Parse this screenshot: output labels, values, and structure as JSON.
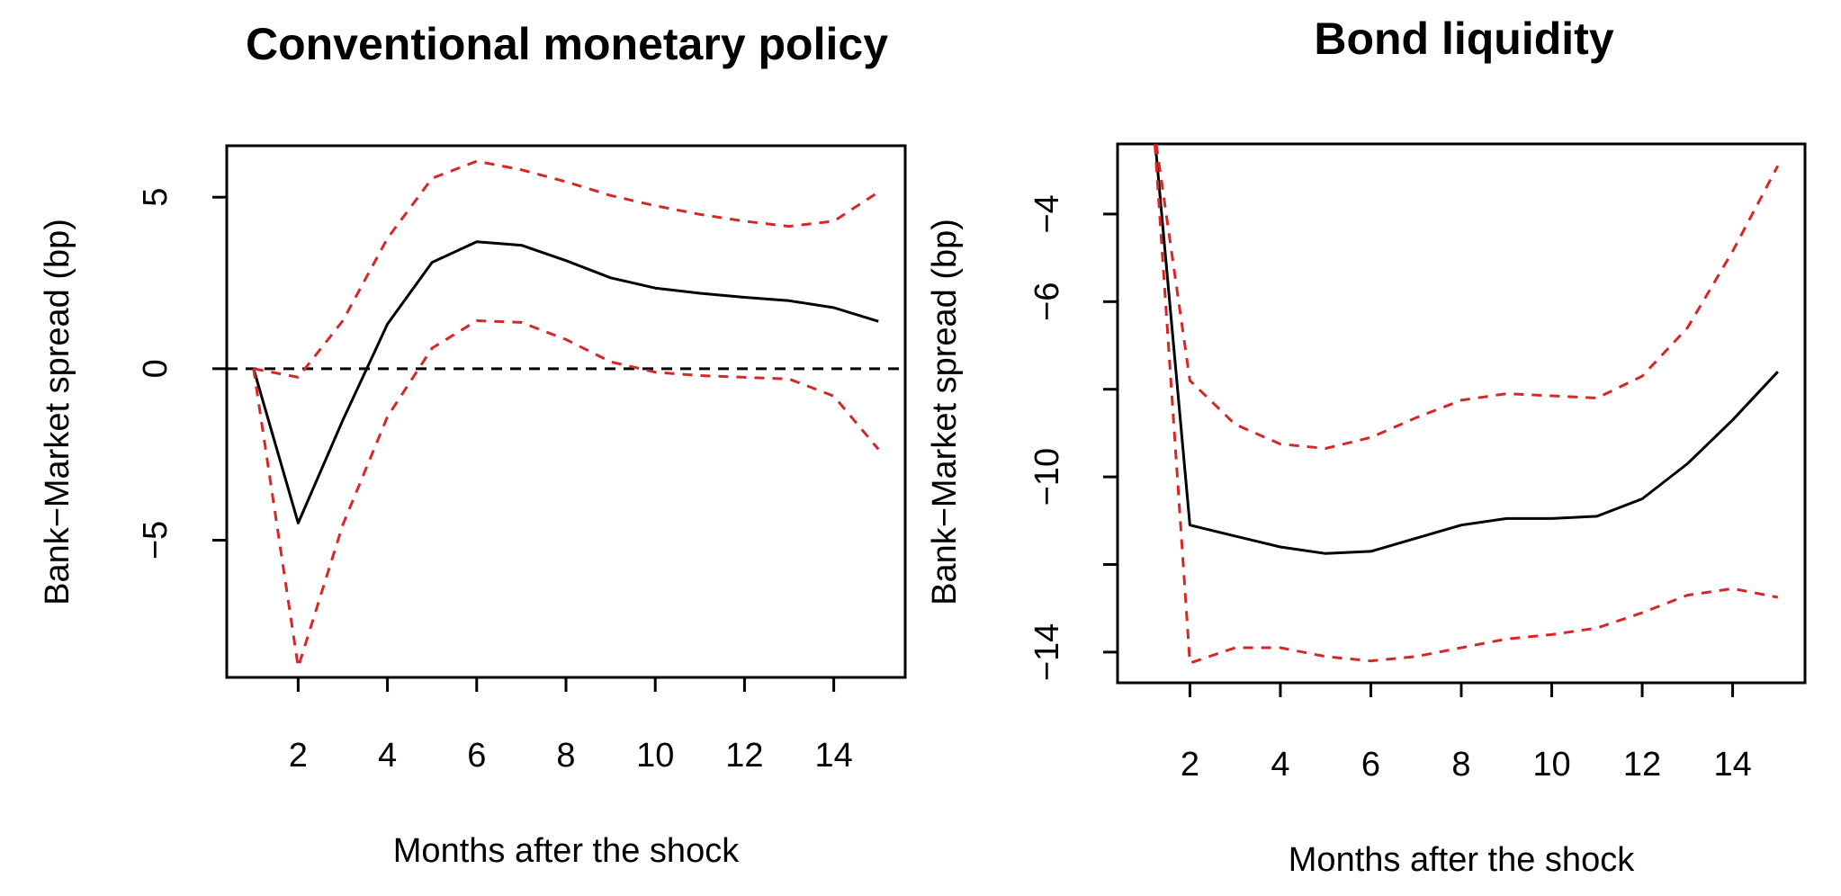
{
  "chart_data": [
    {
      "type": "line",
      "title": "Conventional monetary policy",
      "xlabel": "Months after the shock",
      "ylabel": "Bank−Market spread (bp)",
      "xlim": [
        0.4,
        15.6
      ],
      "ylim": [
        -9,
        6.5
      ],
      "xticks": [
        2,
        4,
        6,
        8,
        10,
        12,
        14
      ],
      "xtick_labels": [
        "2",
        "4",
        "6",
        "8",
        "10",
        "12",
        "14"
      ],
      "yticks": [
        -5,
        0,
        5
      ],
      "ytick_labels": [
        "−5",
        "0",
        "5"
      ],
      "zero_line": true,
      "colors": {
        "estimate": "#000000",
        "band": "#d62728",
        "zero": "#000000"
      },
      "x": [
        1,
        2,
        3,
        4,
        5,
        6,
        7,
        8,
        9,
        10,
        11,
        12,
        13,
        14,
        15
      ],
      "series": [
        {
          "role": "estimate",
          "style": "solid",
          "values": [
            0,
            -4.5,
            -1.5,
            1.3,
            3.1,
            3.7,
            3.6,
            3.15,
            2.65,
            2.35,
            2.2,
            2.08,
            1.98,
            1.78,
            1.38
          ]
        },
        {
          "role": "upper",
          "style": "dashed",
          "values": [
            0,
            -0.25,
            1.4,
            3.8,
            5.55,
            6.05,
            5.8,
            5.45,
            5.05,
            4.75,
            4.5,
            4.3,
            4.15,
            4.3,
            5.15
          ]
        },
        {
          "role": "lower",
          "style": "dashed",
          "values": [
            0,
            -8.7,
            -4.55,
            -1.4,
            0.6,
            1.4,
            1.35,
            0.85,
            0.2,
            -0.1,
            -0.2,
            -0.25,
            -0.3,
            -0.8,
            -2.35
          ]
        }
      ]
    },
    {
      "type": "line",
      "title": "Bond liquidity",
      "xlabel": "Months after the shock",
      "ylabel": "Bank−Market spread (bp)",
      "xlim": [
        0.4,
        15.6
      ],
      "ylim": [
        -14.7,
        -2.4
      ],
      "xticks": [
        2,
        4,
        6,
        8,
        10,
        12,
        14
      ],
      "xtick_labels": [
        "2",
        "4",
        "6",
        "8",
        "10",
        "12",
        "14"
      ],
      "yticks": [
        -14,
        -10,
        -6,
        -4
      ],
      "ytick_labels": [
        "−14",
        "−10",
        "−6",
        "−4"
      ],
      "minor_yticks": [
        -12,
        -8
      ],
      "colors": {
        "estimate": "#000000",
        "band": "#d62728"
      },
      "x": [
        1.2,
        2,
        3,
        4,
        5,
        6,
        7,
        8,
        9,
        10,
        11,
        12,
        13,
        14,
        15
      ],
      "series": [
        {
          "role": "estimate",
          "style": "solid",
          "values": [
            -2.0,
            -11.1,
            -11.35,
            -11.6,
            -11.75,
            -11.7,
            -11.4,
            -11.1,
            -10.95,
            -10.95,
            -10.9,
            -10.5,
            -9.7,
            -8.7,
            -7.6
          ]
        },
        {
          "role": "upper",
          "style": "dashed",
          "values": [
            -2.0,
            -7.8,
            -8.8,
            -9.25,
            -9.35,
            -9.1,
            -8.65,
            -8.25,
            -8.1,
            -8.15,
            -8.2,
            -7.7,
            -6.6,
            -4.85,
            -2.9
          ]
        },
        {
          "role": "lower",
          "style": "dashed",
          "values": [
            -2.0,
            -14.25,
            -13.9,
            -13.9,
            -14.1,
            -14.2,
            -14.1,
            -13.9,
            -13.7,
            -13.6,
            -13.45,
            -13.1,
            -12.7,
            -12.55,
            -12.75
          ]
        }
      ]
    }
  ]
}
